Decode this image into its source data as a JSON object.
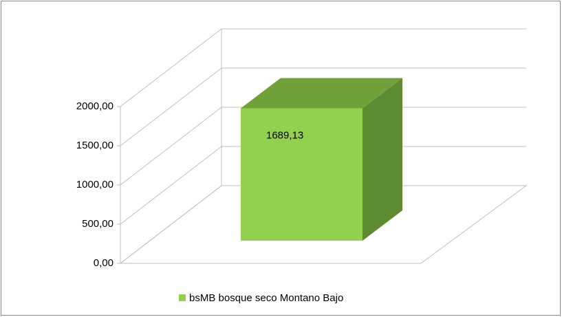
{
  "chart_data": {
    "type": "bar3d",
    "categories": [
      null
    ],
    "series": [
      {
        "name": "bsMB bosque seco Montano Bajo",
        "color": "#92d050",
        "values": [
          1689.13
        ],
        "value_labels": [
          "1689,13"
        ]
      }
    ],
    "ylim": [
      0,
      2000
    ],
    "yticks": [
      {
        "value": 0,
        "label": "0,00"
      },
      {
        "value": 500,
        "label": "500,00"
      },
      {
        "value": 1000,
        "label": "1000,00"
      },
      {
        "value": 1500,
        "label": "1500,00"
      },
      {
        "value": 2000,
        "label": "2000,00"
      }
    ],
    "grid": true,
    "legend": "bottom"
  }
}
